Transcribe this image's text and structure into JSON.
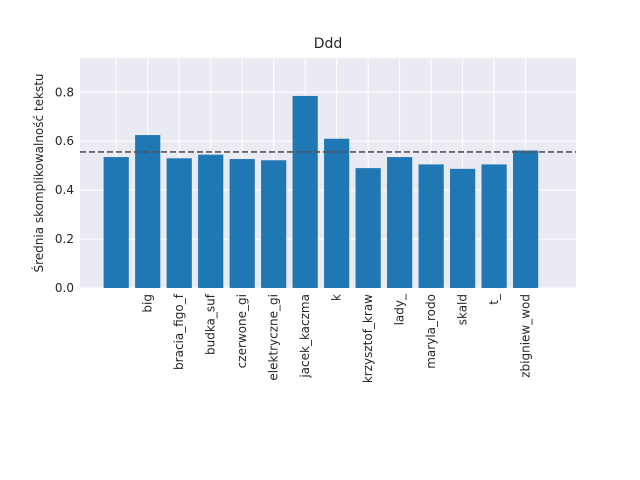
{
  "chart_data": {
    "type": "bar",
    "title": "Ddd",
    "xlabel": "",
    "ylabel": "Średnia skomplikowalność tekstu",
    "categories": [
      "",
      "big",
      "bracia_figo_f",
      "budka_suf",
      "czerwone_gi",
      "elektryczne_gi",
      "jacek_kaczma",
      "k",
      "krzysztof_kraw",
      "lady_",
      "maryla_rodo",
      "skald",
      "t_",
      "zbigniew_wod"
    ],
    "values": [
      0.535,
      0.625,
      0.53,
      0.545,
      0.527,
      0.522,
      0.785,
      0.61,
      0.49,
      0.535,
      0.505,
      0.487,
      0.505,
      0.562
    ],
    "ylim": [
      0.0,
      0.94
    ],
    "yticks": [
      "0.0",
      "0.2",
      "0.4",
      "0.6",
      "0.8"
    ],
    "reference_line": {
      "value": 0.556,
      "style": "dashed",
      "color": "#555555"
    },
    "bar_color": "#1f77b4",
    "background_color": "#eaeaf2",
    "grid": true
  }
}
